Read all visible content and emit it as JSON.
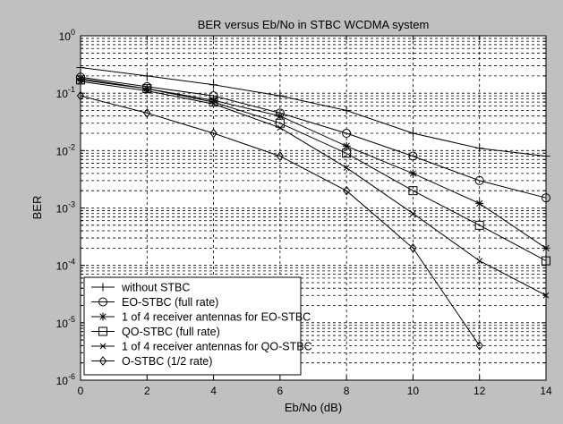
{
  "chart_data": {
    "type": "line",
    "title": "BER versus Eb/No in STBC WCDMA system",
    "xlabel": "Eb/No (dB)",
    "ylabel": "BER",
    "xlim": [
      0,
      14
    ],
    "ylim": [
      1e-06,
      1
    ],
    "yscale": "log",
    "grid": true,
    "legend_position": "bottom-left",
    "x_ticks": [
      0,
      2,
      4,
      6,
      8,
      10,
      12,
      14
    ],
    "y_ticks": [
      {
        "base": "10",
        "exp": "0"
      },
      {
        "base": "10",
        "exp": "-1"
      },
      {
        "base": "10",
        "exp": "-2"
      },
      {
        "base": "10",
        "exp": "-3"
      },
      {
        "base": "10",
        "exp": "-4"
      },
      {
        "base": "10",
        "exp": "-5"
      },
      {
        "base": "10",
        "exp": "-6"
      }
    ],
    "series": [
      {
        "name": "without STBC",
        "marker": "plus",
        "x": [
          0,
          2,
          4,
          6,
          8,
          10,
          12,
          14
        ],
        "values": [
          0.28,
          0.2,
          0.14,
          0.09,
          0.05,
          0.02,
          0.011,
          0.008
        ]
      },
      {
        "name": "EO-STBC (full rate)",
        "marker": "circle",
        "x": [
          0,
          2,
          4,
          6,
          8,
          10,
          12,
          14
        ],
        "values": [
          0.19,
          0.13,
          0.09,
          0.045,
          0.02,
          0.008,
          0.003,
          0.0015
        ]
      },
      {
        "name": "1 of 4 receiver antennas for EO-STBC",
        "marker": "star",
        "x": [
          0,
          2,
          4,
          6,
          8,
          10,
          12,
          14
        ],
        "values": [
          0.18,
          0.12,
          0.075,
          0.04,
          0.012,
          0.004,
          0.0012,
          0.0002
        ]
      },
      {
        "name": "QO-STBC (full rate)",
        "marker": "square",
        "x": [
          0,
          2,
          4,
          6,
          8,
          10,
          12,
          14
        ],
        "values": [
          0.17,
          0.12,
          0.07,
          0.03,
          0.009,
          0.002,
          0.0005,
          0.00012
        ]
      },
      {
        "name": "1 of 4 receiver antennas for QO-STBC",
        "marker": "x",
        "x": [
          0,
          2,
          4,
          6,
          8,
          10,
          12,
          14
        ],
        "values": [
          0.16,
          0.11,
          0.065,
          0.025,
          0.005,
          0.0008,
          0.00012,
          3e-05
        ]
      },
      {
        "name": "O-STBC (1/2 rate)",
        "marker": "diamond",
        "x": [
          0,
          2,
          4,
          6,
          8,
          10,
          12
        ],
        "values": [
          0.09,
          0.045,
          0.02,
          0.008,
          0.002,
          0.0002,
          4e-06
        ]
      }
    ]
  }
}
